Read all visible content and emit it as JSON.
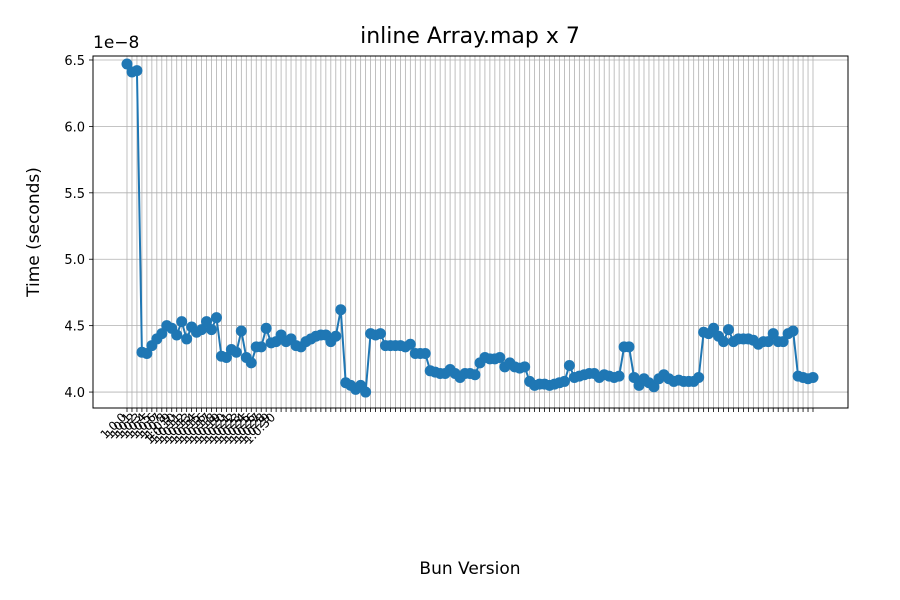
{
  "chart_data": {
    "type": "line",
    "title": "inline Array.map x 7",
    "xlabel": "Bun Version",
    "ylabel": "Time (seconds)",
    "y_offset_label": "1e−8",
    "ylim": [
      3.88,
      6.53
    ],
    "yticks": [
      4.0,
      4.5,
      5.0,
      5.5,
      6.0,
      6.5
    ],
    "ytick_labels": [
      "4.0",
      "4.5",
      "5.0",
      "5.5",
      "6.0",
      "6.5"
    ],
    "grid": true,
    "marker": "circle",
    "color": "#1f77b4",
    "x_tick_labels_legible": false,
    "x_tick_labels": [
      "1.0.0",
      "1.0.1",
      "1.0.2",
      "1.0.3",
      "1.0.4",
      "1.0.5",
      "1.0.6",
      "1.0.7",
      "1.0.8",
      "1.0.9",
      "1.0.10",
      "1.0.11",
      "1.0.12",
      "1.0.13",
      "1.0.14",
      "1.0.15",
      "1.0.16",
      "1.0.17",
      "1.0.18",
      "1.0.19",
      "1.0.20",
      "1.0.21",
      "1.0.22",
      "1.0.23",
      "1.0.24",
      "1.0.25",
      "1.0.26",
      "1.0.27",
      "1.0.28",
      "1.0.29",
      "1.0.30"
    ],
    "series": [
      {
        "values": [
          6.47,
          6.41,
          6.42,
          4.3,
          4.29,
          4.35,
          4.4,
          4.44,
          4.5,
          4.48,
          4.43,
          4.53,
          4.4,
          4.49,
          4.45,
          4.47,
          4.53,
          4.47,
          4.56,
          4.27,
          4.26,
          4.32,
          4.3,
          4.46,
          4.26,
          4.22,
          4.34,
          4.34,
          4.48,
          4.37,
          4.38,
          4.43,
          4.38,
          4.4,
          4.35,
          4.34,
          4.38,
          4.4,
          4.42,
          4.43,
          4.43,
          4.38,
          4.42,
          4.62,
          4.07,
          4.05,
          4.02,
          4.05,
          4.0,
          4.44,
          4.43,
          4.44,
          4.35,
          4.35,
          4.35,
          4.35,
          4.34,
          4.36,
          4.29,
          4.29,
          4.29,
          4.16,
          4.15,
          4.14,
          4.14,
          4.17,
          4.14,
          4.11,
          4.14,
          4.14,
          4.13,
          4.22,
          4.26,
          4.25,
          4.25,
          4.26,
          4.19,
          4.22,
          4.19,
          4.18,
          4.19,
          4.08,
          4.05,
          4.06,
          4.06,
          4.05,
          4.06,
          4.07,
          4.08,
          4.2,
          4.11,
          4.12,
          4.13,
          4.14,
          4.14,
          4.11,
          4.13,
          4.12,
          4.11,
          4.12,
          4.34,
          4.34,
          4.11,
          4.05,
          4.1,
          4.07,
          4.04,
          4.1,
          4.13,
          4.1,
          4.08,
          4.09,
          4.08,
          4.08,
          4.08,
          4.11,
          4.45,
          4.44,
          4.48,
          4.42,
          4.38,
          4.47,
          4.38,
          4.4,
          4.4,
          4.4,
          4.39,
          4.36,
          4.38,
          4.38,
          4.44,
          4.38,
          4.38,
          4.44,
          4.46,
          4.12,
          4.11,
          4.1,
          4.11
        ]
      }
    ]
  }
}
